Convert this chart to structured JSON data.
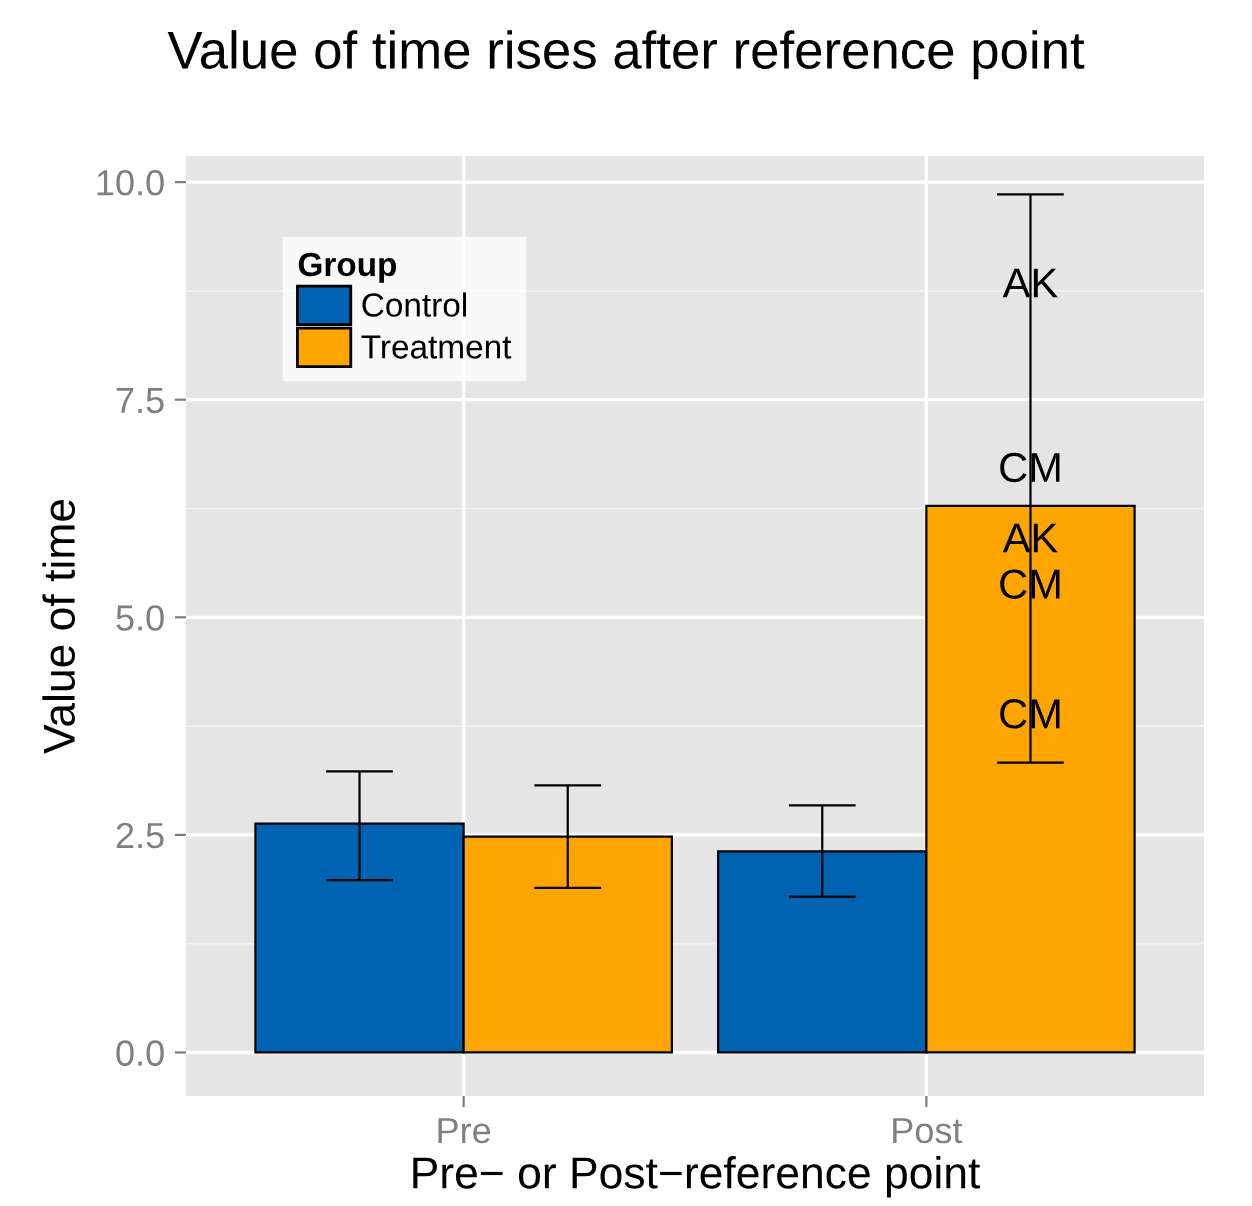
{
  "chart_data": {
    "type": "bar",
    "title": "Value of time rises after reference point",
    "xlabel": "Pre− or Post−reference point",
    "ylabel": "Value of time",
    "legend_title": "Group",
    "categories": [
      "Pre",
      "Post"
    ],
    "series": [
      {
        "name": "Control",
        "color": "#0063b1",
        "values": [
          2.63,
          2.31
        ],
        "errors": [
          [
            1.98,
            3.23
          ],
          [
            1.79,
            2.84
          ]
        ]
      },
      {
        "name": "Treatment",
        "color": "#ffa500",
        "values": [
          2.48,
          6.28
        ],
        "errors": [
          [
            1.89,
            3.07
          ],
          [
            3.33,
            9.86
          ]
        ]
      }
    ],
    "annotations": [
      {
        "text": "AK",
        "y": 8.8
      },
      {
        "text": "CM",
        "y": 6.68
      },
      {
        "text": "AK",
        "y": 5.87
      },
      {
        "text": "CM",
        "y": 5.34
      },
      {
        "text": "CM",
        "y": 3.85
      }
    ],
    "ylim": [
      -0.5,
      10.3
    ],
    "yticks": [
      {
        "value": 0,
        "label": "0.0"
      },
      {
        "value": 2.5,
        "label": "2.5"
      },
      {
        "value": 5,
        "label": "5.0"
      },
      {
        "value": 7.5,
        "label": "7.5"
      },
      {
        "value": 10,
        "label": "10.0"
      }
    ],
    "grid": true,
    "legend": "top left"
  }
}
